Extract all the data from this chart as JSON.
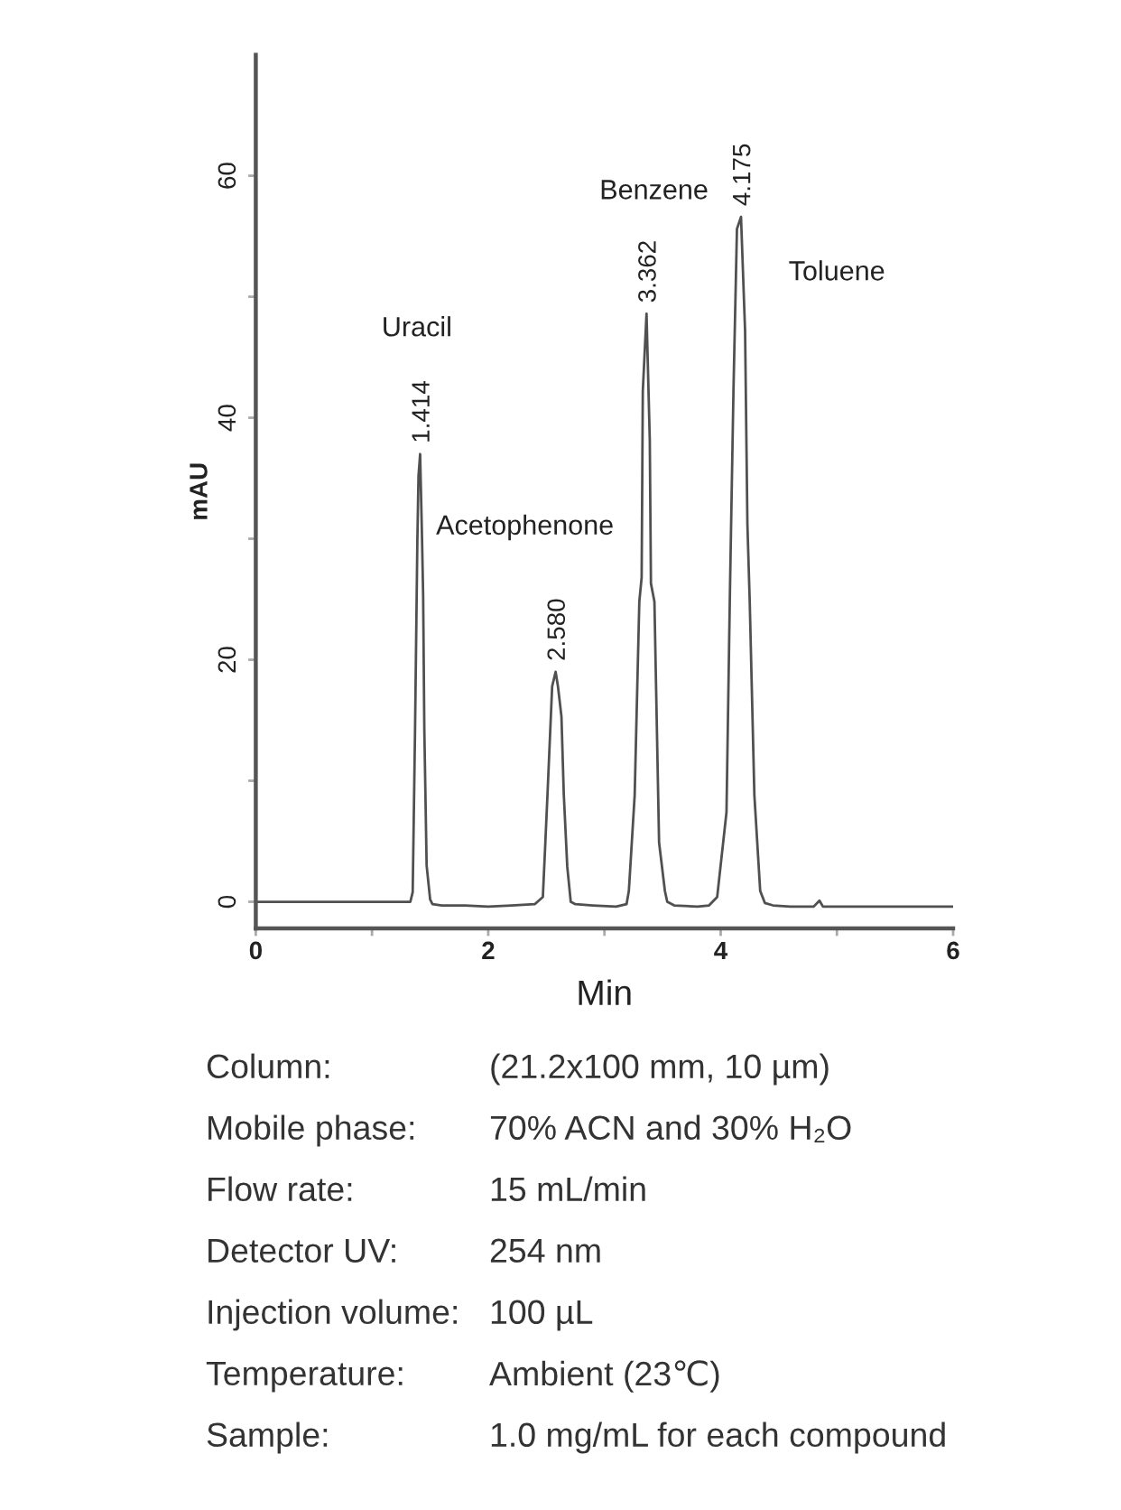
{
  "chart_data": {
    "type": "line",
    "xlabel": "Min",
    "ylabel": "mAU",
    "xlim": [
      0,
      6
    ],
    "ylim": [
      -2.2,
      70
    ],
    "xticks": [
      0,
      {
        "value": 1,
        "label": null
      },
      2,
      {
        "value": 3,
        "label": null
      },
      4,
      {
        "value": 5,
        "label": null
      },
      6
    ],
    "yticks": [
      0,
      {
        "value": 10,
        "label": null
      },
      20,
      {
        "value": 30,
        "label": null
      },
      40,
      {
        "value": 50,
        "label": null
      },
      60
    ],
    "series": [
      {
        "color": "#505050",
        "x": [
          0,
          0.5,
          1.0,
          1.33,
          1.35,
          1.37,
          1.39,
          1.4,
          1.414,
          1.43,
          1.44,
          1.45,
          1.47,
          1.5,
          1.52,
          1.6,
          1.8,
          2.0,
          2.2,
          2.4,
          2.47,
          2.49,
          2.51,
          2.55,
          2.58,
          2.6,
          2.63,
          2.65,
          2.68,
          2.71,
          2.75,
          2.9,
          3.1,
          3.19,
          3.21,
          3.26,
          3.3,
          3.32,
          3.33,
          3.362,
          3.39,
          3.4,
          3.43,
          3.47,
          3.52,
          3.54,
          3.6,
          3.8,
          3.9,
          3.97,
          4.05,
          4.08,
          4.11,
          4.14,
          4.175,
          4.21,
          4.23,
          4.25,
          4.29,
          4.34,
          4.38,
          4.45,
          4.6,
          4.8,
          4.85,
          4.88,
          5.2,
          6.0
        ],
        "values": [
          0,
          0,
          0,
          0,
          0.8,
          14,
          29.7,
          35.2,
          37,
          30.2,
          25.3,
          14.3,
          3,
          0.2,
          -0.2,
          -0.3,
          -0.3,
          -0.4,
          -0.3,
          -0.2,
          0.4,
          4.6,
          8.9,
          17.8,
          19,
          17.8,
          15.3,
          8.9,
          2.9,
          0,
          -0.2,
          -0.3,
          -0.4,
          -0.2,
          0.9,
          8.8,
          24.8,
          26.8,
          42.2,
          48.6,
          38.2,
          26.3,
          24.8,
          4.9,
          0.9,
          0,
          -0.3,
          -0.4,
          -0.3,
          0.4,
          7.4,
          25.8,
          42.2,
          55.6,
          56.6,
          47.2,
          31.2,
          24.8,
          8.8,
          0.9,
          -0.1,
          -0.3,
          -0.4,
          -0.4,
          0.1,
          -0.4,
          -0.4,
          -0.4
        ]
      }
    ],
    "annotations": [
      "Uracil",
      {
        "text": "1.414",
        "x": 1.414,
        "y": 37
      },
      "Acetophenone",
      {
        "text": "2.580",
        "x": 2.58,
        "y": 19
      },
      "Benzene",
      {
        "text": "3.362",
        "x": 3.362,
        "y": 48.6
      },
      {
        "text": "4.175",
        "x": 4.175,
        "y": 56.6
      },
      "Toluene",
      "Column:",
      "(21.2x100 mm, 10 µm)",
      "Mobile phase:",
      "70% ACN and 30% H₂O",
      "Flow rate:",
      "15 mL/min",
      "Detector UV:",
      "254 nm",
      "Injection volume:",
      "100 µL",
      "Temperature:",
      "Ambient (23℃)",
      "Sample:",
      "1.0 mg/mL for each compound"
    ]
  }
}
